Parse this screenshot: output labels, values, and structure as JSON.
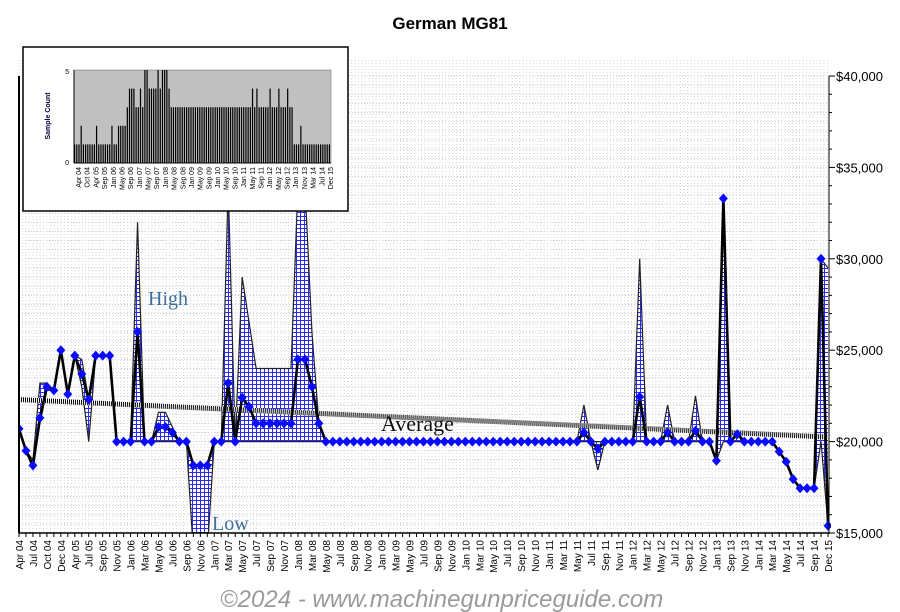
{
  "chart_data": {
    "type": "line",
    "title": "German MG81",
    "xlabel": "",
    "ylabel": "",
    "ylim": [
      15000,
      40000
    ],
    "y_ticks": [
      "$15,000",
      "$20,000",
      "$25,000",
      "$30,000",
      "$35,000",
      "$40,000"
    ],
    "y_tick_values": [
      15000,
      20000,
      25000,
      30000,
      35000,
      40000
    ],
    "x_tick_labels": [
      "Apr 04",
      "Jul 04",
      "Oct 04",
      "Dec 04",
      "Apr 05",
      "Jul 05",
      "Sep 05",
      "Nov 05",
      "Jan 06",
      "Mar 06",
      "May 06",
      "Jul 06",
      "Sep 06",
      "Nov 06",
      "Jan 07",
      "Mar 07",
      "May 07",
      "Jul 07",
      "Sep 07",
      "Nov 07",
      "Jan 08",
      "Mar 08",
      "May 08",
      "Jul 08",
      "Sep 08",
      "Nov 08",
      "Jan 09",
      "Mar 09",
      "May 09",
      "Jul 09",
      "Sep 09",
      "Nov 09",
      "Jan 10",
      "Mar 10",
      "May 10",
      "Jul 10",
      "Sep 10",
      "Nov 10",
      "Jan 11",
      "Mar 11",
      "May 11",
      "Jul 11",
      "Sep 11",
      "Nov 11",
      "Jan 12",
      "Mar 12",
      "May 12",
      "Jul 12",
      "Sep 12",
      "Nov 12",
      "Jan 13",
      "Sep 13",
      "Nov 13",
      "Jan 14",
      "Mar 14",
      "May 14",
      "Jul 14",
      "Sep 14",
      "Dec 15"
    ],
    "point_count": 117,
    "series": [
      {
        "name": "Average Price",
        "color": "#0000ff",
        "values": [
          20700,
          19500,
          18700,
          21300,
          23000,
          22800,
          25000,
          22600,
          24700,
          23700,
          22300,
          24700,
          24700,
          24700,
          20000,
          20000,
          20000,
          26000,
          20000,
          20000,
          20800,
          20800,
          20500,
          20000,
          20000,
          18700,
          18700,
          18700,
          20000,
          20000,
          23200,
          20000,
          22400,
          21900,
          21000,
          21000,
          21000,
          21000,
          21000,
          21000,
          24500,
          24500,
          23000,
          21000,
          20000,
          20000,
          20000,
          20000,
          20000,
          20000,
          20000,
          20000,
          20000,
          20000,
          20000,
          20000,
          20000,
          20000,
          20000,
          20000,
          20000,
          20000,
          20000,
          20000,
          20000,
          20000,
          20000,
          20000,
          20000,
          20000,
          20000,
          20000,
          20000,
          20000,
          20000,
          20000,
          20000,
          20000,
          20000,
          20000,
          20000,
          20500,
          20000,
          19600,
          20000,
          20000,
          20000,
          20000,
          20000,
          22450,
          20000,
          20000,
          20000,
          20500,
          20000,
          20000,
          20000,
          20600,
          20000,
          20000,
          18950,
          33300,
          20000,
          20400,
          20000,
          20000,
          20000,
          20000,
          20000,
          19450,
          18900,
          17950,
          17450,
          17450,
          17450,
          30000,
          15400
        ]
      },
      {
        "name": "High",
        "color": "#000000",
        "values": [
          20700,
          19500,
          19000,
          23200,
          23200,
          22800,
          25000,
          22600,
          24700,
          24500,
          22300,
          24700,
          24700,
          24700,
          20000,
          20000,
          20000,
          32000,
          20000,
          20000,
          21600,
          21600,
          20800,
          20000,
          20000,
          18700,
          18700,
          18700,
          20000,
          20000,
          34000,
          20000,
          29000,
          26500,
          24000,
          24000,
          24000,
          24000,
          24000,
          24000,
          34000,
          34000,
          26000,
          21000,
          20000,
          20000,
          20000,
          20000,
          20000,
          20000,
          20000,
          20000,
          20000,
          20000,
          20000,
          20000,
          20000,
          20000,
          20000,
          20000,
          20000,
          20000,
          20000,
          20000,
          20000,
          20000,
          20000,
          20000,
          20000,
          20000,
          20000,
          20000,
          20000,
          20000,
          20000,
          20000,
          20000,
          20000,
          20000,
          20000,
          20000,
          22000,
          20000,
          20000,
          20000,
          20000,
          20000,
          20000,
          20000,
          30000,
          20000,
          20000,
          20000,
          22000,
          20000,
          20000,
          20000,
          22500,
          20000,
          20000,
          18950,
          33300,
          20000,
          20600,
          20000,
          20000,
          20000,
          20000,
          20000,
          19450,
          18900,
          17950,
          17450,
          17450,
          17450,
          30000,
          29500
        ]
      },
      {
        "name": "Low",
        "color": "#000000",
        "values": [
          20700,
          19500,
          18500,
          21000,
          22800,
          22800,
          25000,
          22600,
          24700,
          23000,
          20000,
          24700,
          24700,
          24700,
          20000,
          20000,
          20000,
          20000,
          20000,
          20000,
          20000,
          20000,
          20000,
          20000,
          20000,
          14000,
          14000,
          14000,
          20000,
          20000,
          20000,
          20000,
          20000,
          20000,
          20000,
          20000,
          20000,
          20000,
          20000,
          20000,
          20000,
          20000,
          20000,
          20000,
          20000,
          20000,
          20000,
          20000,
          20000,
          20000,
          20000,
          20000,
          20000,
          20000,
          20000,
          20000,
          20000,
          20000,
          20000,
          20000,
          20000,
          20000,
          20000,
          20000,
          20000,
          20000,
          20000,
          20000,
          20000,
          20000,
          20000,
          20000,
          20000,
          20000,
          20000,
          20000,
          20000,
          20000,
          20000,
          20000,
          20000,
          20000,
          20000,
          18450,
          20000,
          20000,
          20000,
          20000,
          20000,
          20000,
          20000,
          20000,
          20000,
          20000,
          20000,
          20000,
          20000,
          20000,
          20000,
          20000,
          18950,
          20000,
          20000,
          20000,
          20000,
          20000,
          20000,
          20000,
          20000,
          19450,
          18900,
          17950,
          17450,
          17450,
          17450,
          20000,
          15400
        ]
      }
    ],
    "trend": {
      "name": "Average",
      "start": 22300,
      "end": 20250
    },
    "annotations": {
      "high": "High",
      "low": "Low",
      "average": "Average"
    },
    "watermark": "©2024 - www.machinegunpriceguide.com",
    "inset": {
      "type": "bar",
      "ylabel": "Sample Count",
      "ylim": [
        0,
        5
      ],
      "y_ticks": [
        "0",
        "5"
      ],
      "x_tick_labels": [
        "Apr 04",
        "Oct 04",
        "Apr 05",
        "Sep 05",
        "Jan 06",
        "May 06",
        "Sep 06",
        "Jan 07",
        "May 07",
        "Sep 07",
        "Jan 08",
        "May 08",
        "Sep 08",
        "Jan 09",
        "May 09",
        "Sep 09",
        "Jan 10",
        "May 10",
        "Sep 10",
        "Jan 11",
        "May 11",
        "Sep 11",
        "Jan 12",
        "May 12",
        "Sep 12",
        "Jan 13",
        "Nov 13",
        "Mar 14",
        "Jul 14",
        "Dec 15"
      ],
      "values": [
        1,
        1,
        1,
        2,
        1,
        1,
        1,
        1,
        1,
        1,
        2,
        1,
        1,
        1,
        1,
        1,
        1,
        2,
        1,
        1,
        2,
        2,
        2,
        2,
        3,
        4,
        4,
        4,
        3,
        3,
        4,
        3,
        5,
        5,
        4,
        4,
        4,
        4,
        5,
        4,
        5,
        5,
        5,
        4,
        3,
        3,
        3,
        3,
        3,
        3,
        3,
        3,
        3,
        3,
        3,
        3,
        3,
        3,
        3,
        3,
        3,
        3,
        3,
        3,
        3,
        3,
        3,
        3,
        3,
        3,
        3,
        3,
        3,
        3,
        3,
        3,
        3,
        3,
        3,
        3,
        3,
        4,
        3,
        4,
        3,
        3,
        3,
        3,
        3,
        4,
        3,
        3,
        3,
        4,
        3,
        3,
        3,
        4,
        3,
        3,
        1,
        1,
        1,
        2,
        1,
        1,
        1,
        1,
        1,
        1,
        1,
        1,
        1,
        1,
        1,
        1,
        1
      ]
    }
  }
}
